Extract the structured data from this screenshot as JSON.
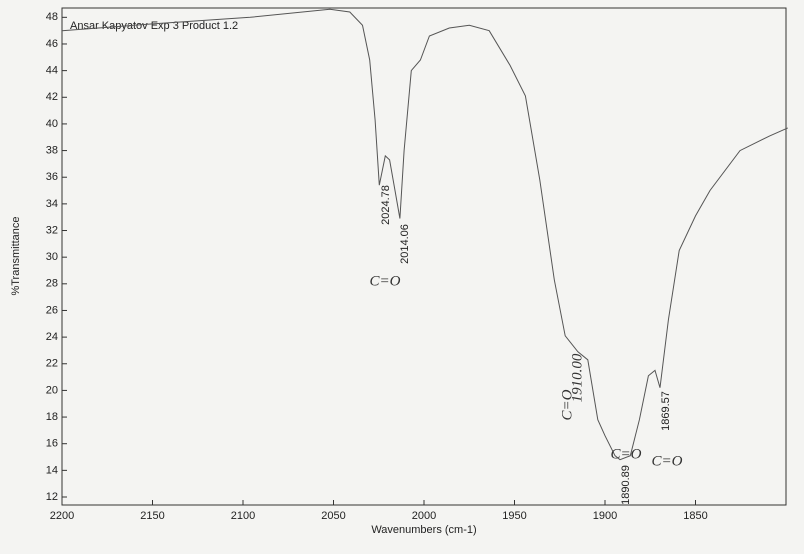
{
  "chart_data": {
    "type": "line",
    "title": "Ansar Kapyatov Exp 3 Product 1.2",
    "x_label": "Wavenumbers (cm-1)",
    "y_label": "%Transmittance",
    "x": [
      2200,
      2151,
      2096,
      2052,
      2041,
      2034,
      2030,
      2027,
      2024.7,
      2021.4,
      2019,
      2016,
      2013.3,
      2011,
      2007,
      2002,
      1997,
      1986,
      1975,
      1964,
      1952.5,
      1944,
      1936,
      1928,
      1922,
      1915,
      1909.5,
      1904,
      1900,
      1894.5,
      1891.7,
      1886,
      1881,
      1876,
      1872.4,
      1869.6,
      1865,
      1859,
      1850,
      1842,
      1825.4,
      1809,
      1799
    ],
    "values": [
      47.0,
      47.5,
      48.0,
      48.6,
      48.4,
      47.4,
      44.8,
      40.3,
      35.4,
      37.6,
      37.3,
      35.0,
      32.9,
      38.0,
      44.0,
      44.8,
      46.6,
      47.2,
      47.4,
      47.0,
      44.4,
      42.1,
      35.8,
      28.3,
      24.1,
      22.9,
      22.3,
      17.8,
      16.6,
      15.1,
      14.8,
      15.1,
      17.8,
      21.1,
      21.5,
      20.2,
      25.3,
      30.5,
      33.1,
      35.0,
      38.0,
      39.1,
      39.7
    ],
    "color": "#555555",
    "xlim": [
      2200,
      1800
    ],
    "xticks": [
      2200,
      2150,
      2100,
      2050,
      2000,
      1950,
      1900,
      1850
    ],
    "ylim": [
      11.4,
      48.7
    ],
    "yticks": [
      12,
      14,
      16,
      18,
      20,
      22,
      24,
      26,
      28,
      30,
      32,
      34,
      36,
      38,
      40,
      42,
      44,
      46,
      48
    ],
    "annotations": [
      "2024.78",
      "2014.06",
      "1890.89",
      "1869.57",
      "C=O",
      "C=O",
      "1910.00",
      "C=O",
      "C=O"
    ]
  }
}
